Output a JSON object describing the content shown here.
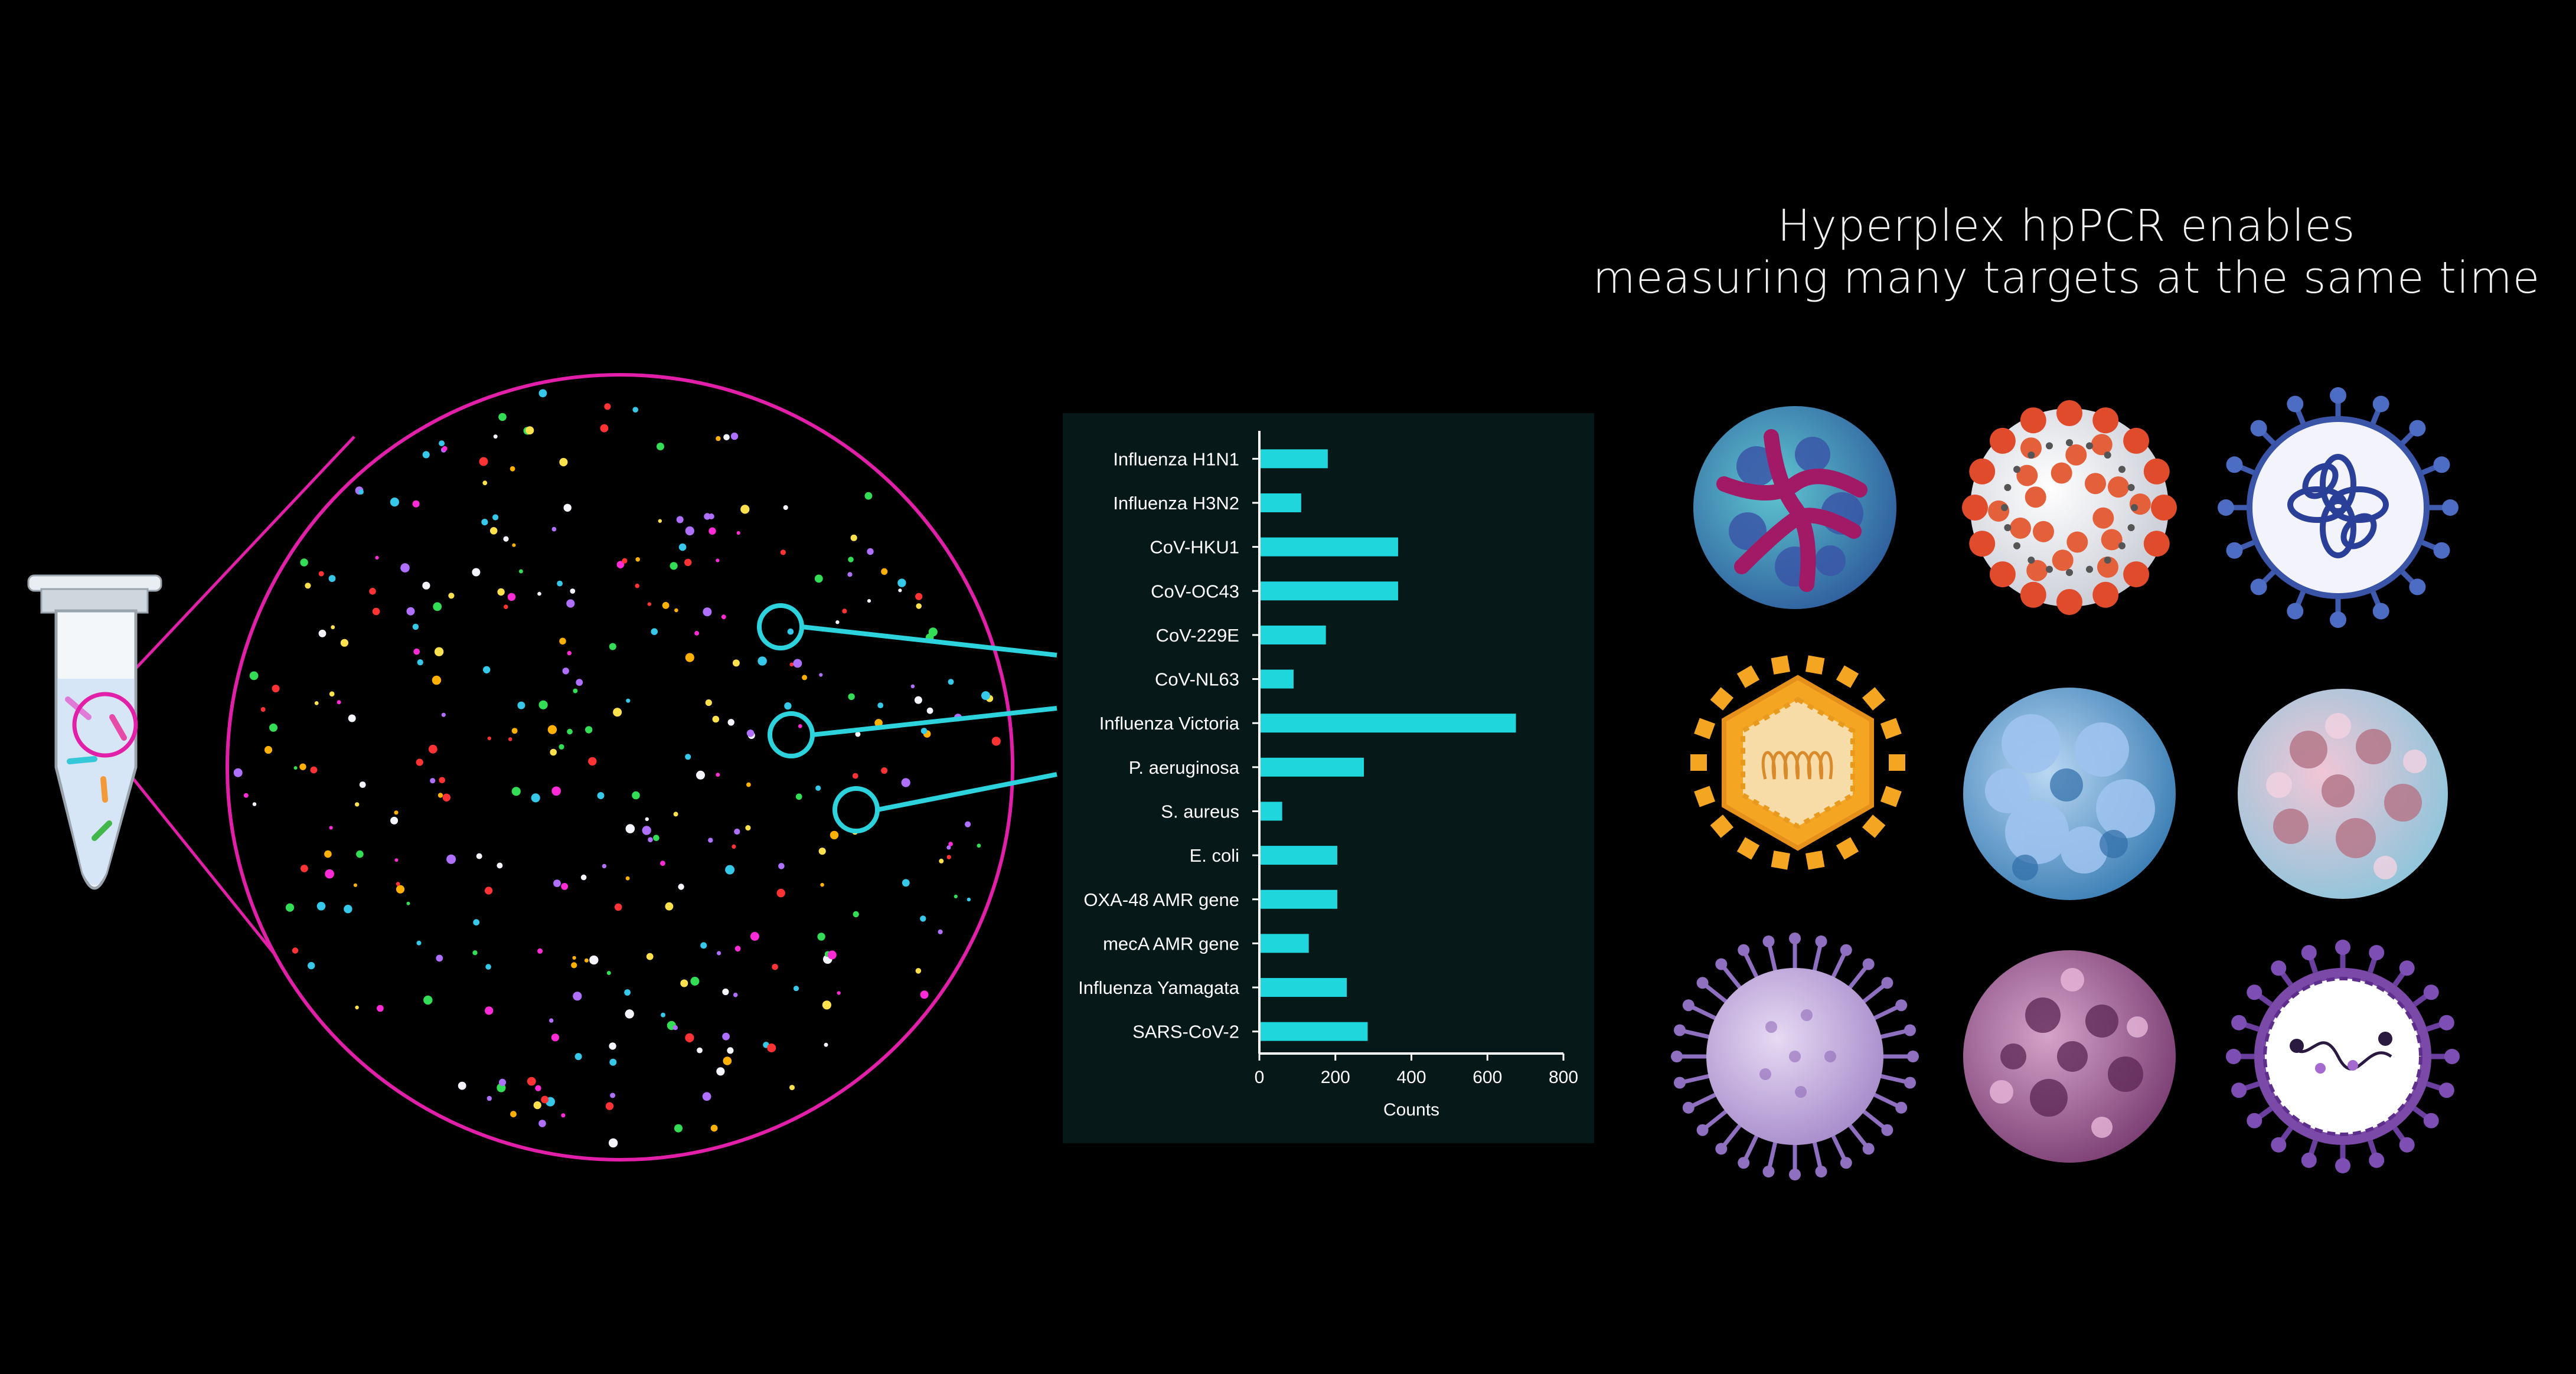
{
  "headline": {
    "line1": "Hyperplex hpPCR enables",
    "line2": "measuring many targets at the same time"
  },
  "colors": {
    "background": "#000000",
    "magnifier": "#e21fa8",
    "callout": "#2dd3dc",
    "bar": "#1ed6dc",
    "chart_panel": "#071818",
    "text": "#ffffff"
  },
  "chart_data": {
    "type": "bar",
    "orientation": "horizontal",
    "categories": [
      "Influenza H1N1",
      "Influenza H3N2",
      "CoV-HKU1",
      "CoV-OC43",
      "CoV-229E",
      "CoV-NL63",
      "Influenza Victoria",
      "P. aeruginosa",
      "S. aureus",
      "E. coli",
      "OXA-48 AMR gene",
      "mecA AMR gene",
      "Influenza Yamagata",
      "SARS-CoV-2"
    ],
    "values": [
      180,
      110,
      365,
      365,
      175,
      90,
      675,
      275,
      60,
      205,
      205,
      130,
      230,
      285
    ],
    "xlabel": "Counts",
    "ylabel": "",
    "xlim": [
      0,
      800
    ],
    "xticks": [
      "0",
      "200",
      "400",
      "600",
      "800"
    ],
    "grid": false
  },
  "illustration": {
    "tube": "microcentrifuge-tube-icon",
    "field": "fluorescence-droplet-field",
    "viruses": [
      "influenza-virus-icon",
      "coronavirus-red-spikes-icon",
      "enveloped-virus-blue-spikes-icon",
      "hexagonal-phage-icon",
      "blue-capsid-virus-icon",
      "pink-capsid-virus-icon",
      "spiky-purple-virus-icon",
      "icosahedral-purple-virus-icon",
      "enveloped-virus-rna-icon"
    ]
  }
}
